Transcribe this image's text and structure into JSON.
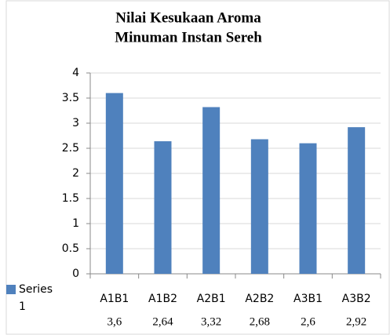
{
  "chart_data": {
    "type": "bar",
    "title": [
      "Nilai Kesukaan Aroma",
      "Minuman  Instan Sereh"
    ],
    "categories": [
      "A1B1",
      "A1B2",
      "A2B1",
      "A2B2",
      "A3B1",
      "A3B2"
    ],
    "series": [
      {
        "name": "Series 1",
        "color": "#4f81bd",
        "values": [
          3.6,
          2.64,
          3.32,
          2.68,
          2.6,
          2.92
        ],
        "value_labels": [
          "3,6",
          "2,64",
          "3,32",
          "2,68",
          "2,6",
          "2,92"
        ]
      }
    ],
    "ylim": [
      0,
      4
    ],
    "yticks": [
      0,
      0.5,
      1,
      1.5,
      2,
      2.5,
      3,
      3.5,
      4
    ],
    "grid": true,
    "legend": "left"
  }
}
